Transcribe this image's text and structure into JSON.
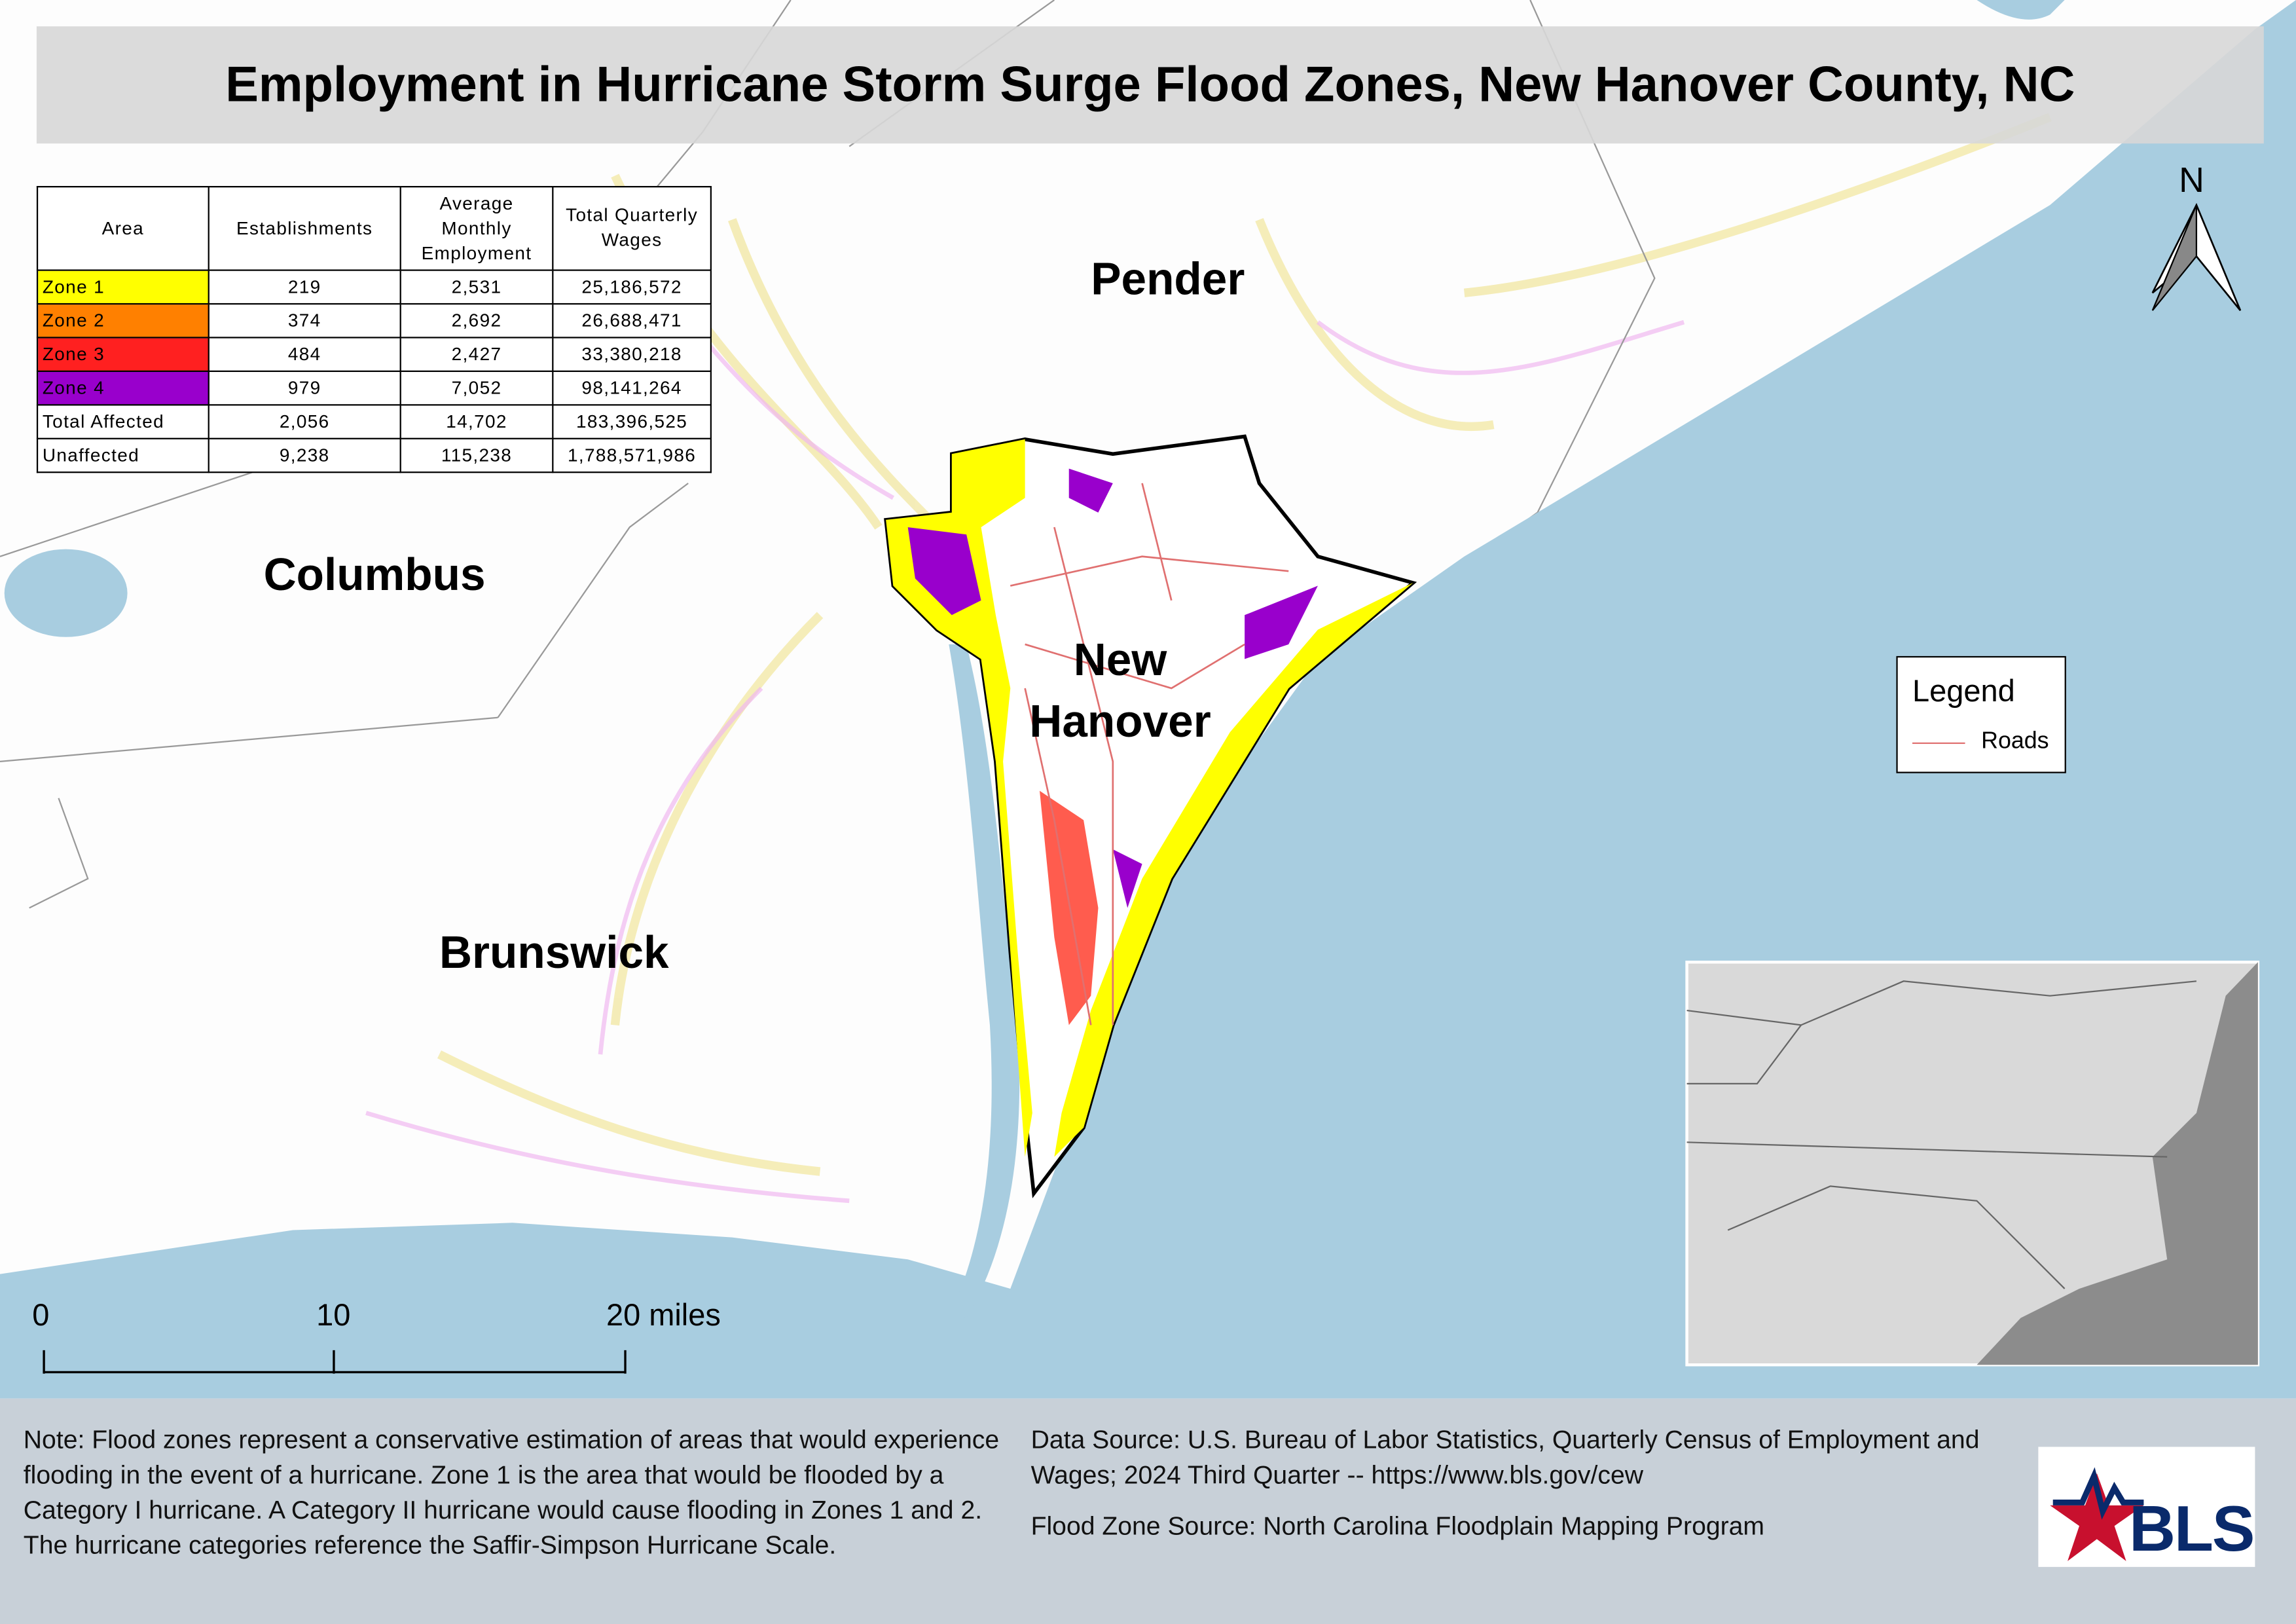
{
  "title": "Employment in Hurricane Storm Surge Flood Zones, New Hanover County, NC",
  "table": {
    "header": [
      "Area",
      "Establishments",
      "Average Monthly Employment",
      "Total Quarterly Wages"
    ],
    "rows": [
      [
        "Zone 1",
        "219",
        "2,531",
        "25,186,572"
      ],
      [
        "Zone 2",
        "374",
        "2,692",
        "26,688,471"
      ],
      [
        "Zone 3",
        "484",
        "2,427",
        "33,380,218"
      ],
      [
        "Zone 4",
        "979",
        "7,052",
        "98,141,264"
      ],
      [
        "Total Affected",
        "2,056",
        "14,702",
        "183,396,525"
      ],
      [
        "Unaffected",
        "9,238",
        "115,238",
        "1,788,571,986"
      ]
    ]
  },
  "map_labels": {
    "pender": "Pender",
    "columbus": "Columbus",
    "new_hanover": "New Hanover",
    "brunswick": "Brunswick"
  },
  "legend": {
    "title": "Legend",
    "item": "Roads"
  },
  "north": "N",
  "scale_bar": [
    "0",
    "10",
    "20 miles"
  ],
  "note": "Note: Flood zones represent a conservative estimation of areas that would experience flooding in the event of a hurricane. Zone 1 is the area that would be flooded by a Category I hurricane. A Category II hurricane would cause flooding in Zones 1 and 2. The hurricane categories reference the Saffir-Simpson Hurricane Scale.",
  "data_source": "Data Source: U.S. Bureau of Labor Statistics, Quarterly Census of Employment and Wages; 2024 Third Quarter -- https://www.bls.gov/cew",
  "flood_source": "Flood Zone Source: North Carolina Floodplain Mapping Program",
  "logo": "BLS"
}
